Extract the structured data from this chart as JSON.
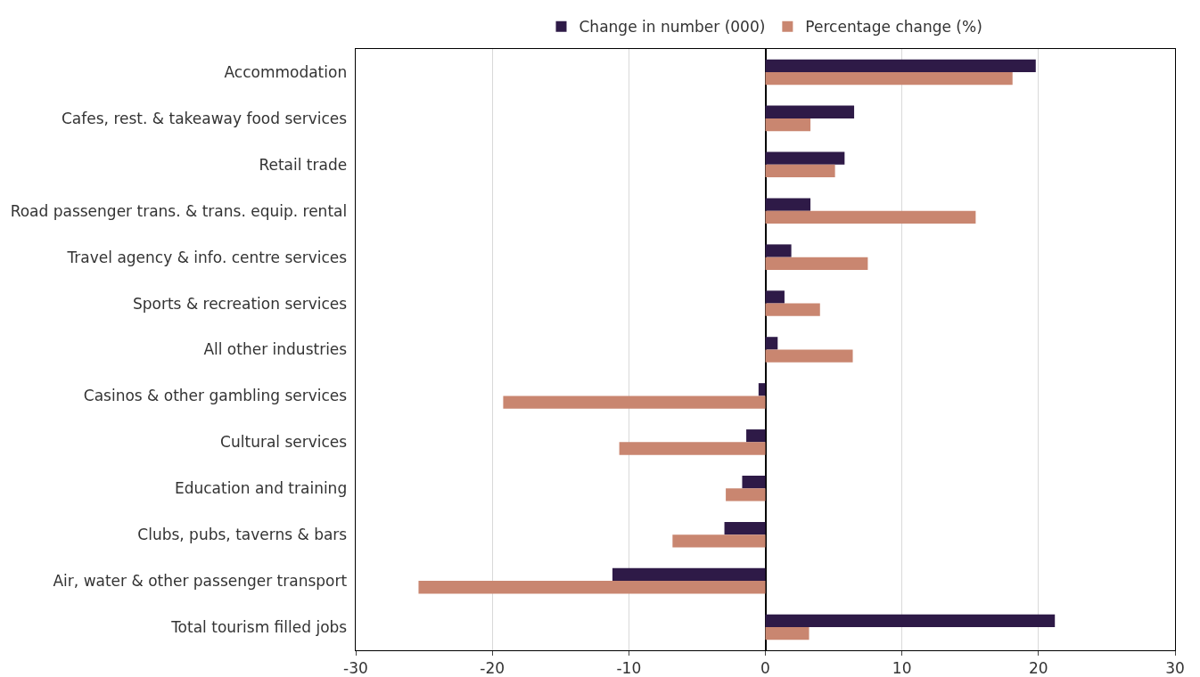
{
  "chart_data": {
    "type": "bar",
    "orientation": "horizontal",
    "categories": [
      "Accommodation",
      "Cafes, rest. & takeaway food services",
      "Retail trade",
      "Road passenger trans. & trans. equip. rental",
      "Travel agency & info. centre services",
      "Sports & recreation services",
      "All other industries",
      "Casinos & other gambling services",
      "Cultural services",
      "Education and training",
      "Clubs, pubs, taverns & bars",
      "Air, water & other passenger transport",
      "Total tourism filled jobs"
    ],
    "series": [
      {
        "name": "Change in number (000)",
        "color": "#2e1a47",
        "values": [
          19.8,
          6.5,
          5.8,
          3.3,
          1.9,
          1.4,
          0.9,
          -0.5,
          -1.4,
          -1.7,
          -3.0,
          -11.2,
          21.2
        ]
      },
      {
        "name": "Percentage change (%)",
        "color": "#c98670",
        "values": [
          18.1,
          3.3,
          5.1,
          15.4,
          7.5,
          4.0,
          6.4,
          -19.2,
          -10.7,
          -2.9,
          -6.8,
          -25.4,
          3.2
        ]
      }
    ],
    "xlim": [
      -30,
      30
    ],
    "xticks": [
      -30,
      -20,
      -10,
      0,
      10,
      20,
      30
    ],
    "grid": "x",
    "legend": "top"
  }
}
